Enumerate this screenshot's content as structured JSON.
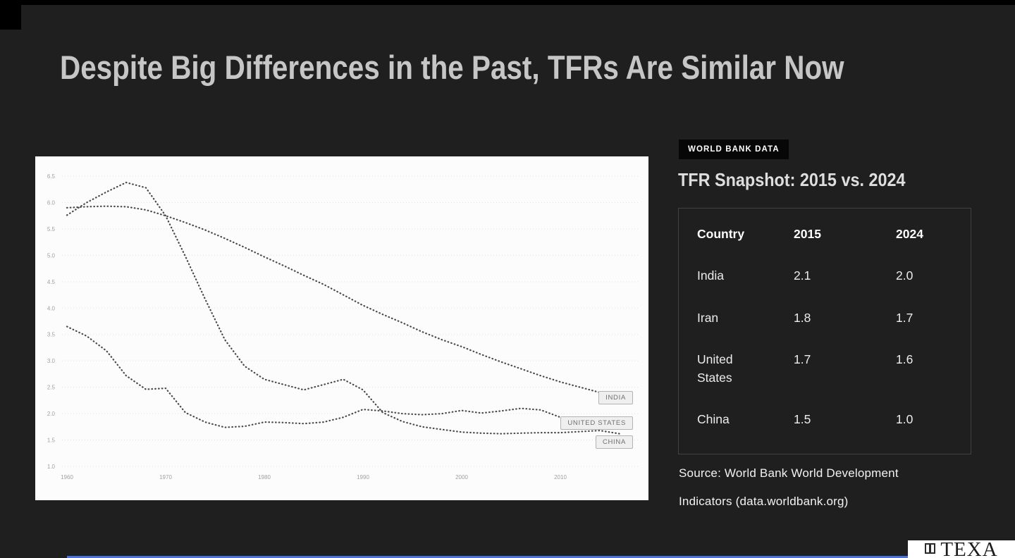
{
  "slide": {
    "title": "Despite Big Differences in the Past, TFRs Are Similar Now"
  },
  "chart_data": {
    "type": "line",
    "title": "",
    "xlabel": "",
    "ylabel": "",
    "line_style": "dotted",
    "grid": true,
    "legend_position": "right-inline-labels",
    "ylim": [
      1.0,
      6.5
    ],
    "yticks": [
      6.5,
      6.0,
      5.5,
      5.0,
      4.5,
      4.0,
      3.5,
      3.0,
      2.5,
      2.0,
      1.5,
      1.0
    ],
    "xticks": [
      1960,
      1970,
      1980,
      1990,
      2000,
      2010
    ],
    "x": [
      1960,
      1962,
      1964,
      1966,
      1968,
      1970,
      1972,
      1974,
      1976,
      1978,
      1980,
      1982,
      1984,
      1986,
      1988,
      1990,
      1992,
      1994,
      1996,
      1998,
      2000,
      2002,
      2004,
      2006,
      2008,
      2010,
      2012,
      2014,
      2016
    ],
    "series": [
      {
        "name": "INDIA",
        "values": [
          5.9,
          5.92,
          5.93,
          5.92,
          5.86,
          5.75,
          5.62,
          5.48,
          5.32,
          5.15,
          4.97,
          4.8,
          4.62,
          4.45,
          4.25,
          4.05,
          3.88,
          3.72,
          3.55,
          3.4,
          3.27,
          3.12,
          2.98,
          2.85,
          2.72,
          2.6,
          2.5,
          2.4,
          2.3
        ]
      },
      {
        "name": "UNITED STATES",
        "values": [
          3.65,
          3.47,
          3.19,
          2.72,
          2.46,
          2.48,
          2.02,
          1.84,
          1.74,
          1.76,
          1.84,
          1.83,
          1.81,
          1.84,
          1.93,
          2.08,
          2.05,
          2.0,
          1.98,
          2.0,
          2.06,
          2.01,
          2.05,
          2.1,
          2.07,
          1.93,
          1.88,
          1.86,
          1.82
        ]
      },
      {
        "name": "CHINA",
        "values": [
          5.76,
          6.0,
          6.2,
          6.38,
          6.28,
          5.75,
          4.98,
          4.17,
          3.4,
          2.9,
          2.65,
          2.55,
          2.45,
          2.55,
          2.65,
          2.45,
          2.02,
          1.85,
          1.75,
          1.7,
          1.65,
          1.63,
          1.62,
          1.63,
          1.64,
          1.64,
          1.66,
          1.68,
          1.62
        ]
      }
    ],
    "line_color": "#4a4a4a",
    "grid_color": "#e3e3e3"
  },
  "panel": {
    "badge": "WORLD BANK DATA",
    "heading": "TFR Snapshot: 2015 vs. 2024",
    "table": {
      "headers": [
        "Country",
        "2015",
        "2024"
      ],
      "rows": [
        [
          "India",
          "2.1",
          "2.0"
        ],
        [
          "Iran",
          "1.8",
          "1.7"
        ],
        [
          "United States",
          "1.7",
          "1.6"
        ],
        [
          "China",
          "1.5",
          "1.0"
        ]
      ]
    },
    "source_line1": "Source: World Bank World Development",
    "source_line2": "Indicators (data.worldbank.org)"
  },
  "footer": {
    "logo_text": "TEXA",
    "accent_color": "#4a74d8"
  }
}
